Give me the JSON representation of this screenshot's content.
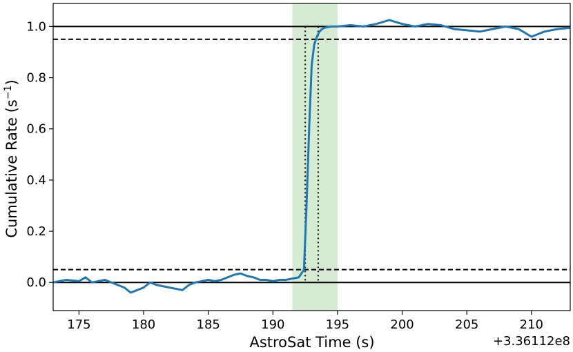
{
  "chart_data": {
    "type": "line",
    "xlabel": "AstroSat Time (s)",
    "ylabel": "Cumulative Rate (s",
    "ylabel_superscript": "−1",
    "ylabel_suffix": ")",
    "x_offset_label": "+3.36112e8",
    "xlim": [
      173,
      213
    ],
    "ylim": [
      -0.11,
      1.09
    ],
    "x_ticks": [
      175,
      180,
      185,
      190,
      195,
      200,
      205,
      210
    ],
    "y_ticks": [
      0.0,
      0.2,
      0.4,
      0.6,
      0.8,
      1.0
    ],
    "x_tick_labels": [
      "175",
      "180",
      "185",
      "190",
      "195",
      "200",
      "205",
      "210"
    ],
    "y_tick_labels": [
      "0.0",
      "0.2",
      "0.4",
      "0.6",
      "0.8",
      "1.0"
    ],
    "grid": false,
    "shaded_region": {
      "x": [
        191.5,
        195.0
      ],
      "color": "#d5ebd2"
    },
    "reference_lines": [
      {
        "y": 0.0,
        "style": "solid",
        "color": "#000000"
      },
      {
        "y": 1.0,
        "style": "solid",
        "color": "#000000"
      },
      {
        "y": 0.05,
        "style": "dashed",
        "color": "#000000"
      },
      {
        "y": 0.95,
        "style": "dashed",
        "color": "#000000"
      }
    ],
    "vertical_lines": [
      {
        "x": 192.5,
        "style": "dotted",
        "color": "#000000"
      },
      {
        "x": 193.5,
        "style": "dotted",
        "color": "#000000"
      }
    ],
    "series": [
      {
        "color": "#1f77b4",
        "x": [
          173.0,
          174.0,
          175.0,
          175.5,
          176.0,
          177.0,
          178.0,
          178.5,
          179.0,
          179.5,
          180.0,
          180.5,
          181.0,
          182.0,
          183.0,
          183.5,
          184.0,
          185.0,
          185.5,
          186.0,
          186.5,
          187.0,
          187.5,
          188.0,
          188.5,
          189.0,
          189.5,
          190.0,
          190.5,
          191.0,
          191.5,
          192.0,
          192.4,
          192.6,
          192.8,
          193.0,
          193.2,
          193.4,
          193.6,
          193.8,
          194.0,
          194.5,
          195.0,
          196.0,
          197.0,
          198.0,
          199.0,
          200.0,
          201.0,
          202.0,
          203.0,
          204.0,
          205.0,
          206.0,
          207.0,
          208.0,
          209.0,
          209.5,
          210.0,
          210.5,
          211.0,
          212.0,
          213.0
        ],
        "y": [
          0.0,
          0.01,
          0.005,
          0.02,
          0.0,
          0.01,
          -0.01,
          -0.02,
          -0.04,
          -0.03,
          -0.02,
          0.0,
          -0.01,
          -0.02,
          -0.03,
          -0.01,
          0.0,
          0.01,
          0.005,
          0.01,
          0.02,
          0.03,
          0.035,
          0.025,
          0.02,
          0.01,
          0.01,
          0.005,
          0.01,
          0.01,
          0.015,
          0.02,
          0.05,
          0.3,
          0.6,
          0.85,
          0.93,
          0.96,
          0.98,
          0.99,
          0.995,
          1.0,
          1.0,
          1.005,
          1.0,
          1.01,
          1.025,
          1.01,
          1.0,
          1.01,
          1.005,
          0.99,
          0.985,
          0.98,
          0.99,
          1.0,
          0.99,
          0.975,
          0.96,
          0.97,
          0.98,
          0.99,
          0.995
        ]
      }
    ]
  }
}
